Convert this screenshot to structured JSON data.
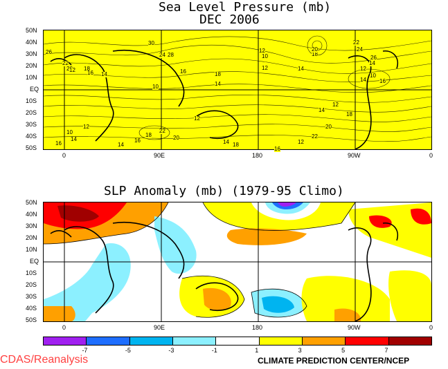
{
  "top": {
    "title1": "Sea Level Pressure (mb)",
    "title2": "DEC 2006",
    "lat_labels": [
      "50N",
      "40N",
      "30N",
      "20N",
      "10N",
      "EQ",
      "10S",
      "20S",
      "30S",
      "40S",
      "50S"
    ],
    "lon_labels": [
      "0",
      "90E",
      "180",
      "90W",
      "0"
    ],
    "contour_labels": [
      "26",
      "30",
      "28",
      "24",
      "22",
      "20",
      "18",
      "16",
      "14",
      "12",
      "10",
      "16",
      "18",
      "14",
      "12",
      "10",
      "12",
      "14",
      "18",
      "20",
      "22",
      "24",
      "26",
      "14",
      "12",
      "10",
      "16",
      "14",
      "12",
      "14",
      "18",
      "20",
      "22",
      "12",
      "16",
      "18",
      "14",
      "12",
      "22",
      "20",
      "18",
      "16",
      "14",
      "12",
      "10",
      "14",
      "16"
    ]
  },
  "bottom": {
    "title": "SLP Anomaly (mb) (1979-95 Climo)",
    "lat_labels": [
      "50N",
      "40N",
      "30N",
      "20N",
      "10N",
      "EQ",
      "10S",
      "20S",
      "30S",
      "40S",
      "50S"
    ],
    "lon_labels": [
      "0",
      "90E",
      "180",
      "90W",
      "0"
    ]
  },
  "colorbar": {
    "colors": [
      "#a020f0",
      "#1e6eff",
      "#00b4f0",
      "#8cf0ff",
      "#ffffff",
      "#ffff00",
      "#ffa000",
      "#ff0000",
      "#a00000"
    ],
    "labels": [
      "-7",
      "-5",
      "-3",
      "-1",
      "1",
      "3",
      "5",
      "7"
    ]
  },
  "footer": {
    "left": "CDAS/Reanalysis",
    "left_color": "#ff4040",
    "right": "CLIMATE PREDICTION CENTER/NCEP"
  },
  "map_color": "#ffff00"
}
